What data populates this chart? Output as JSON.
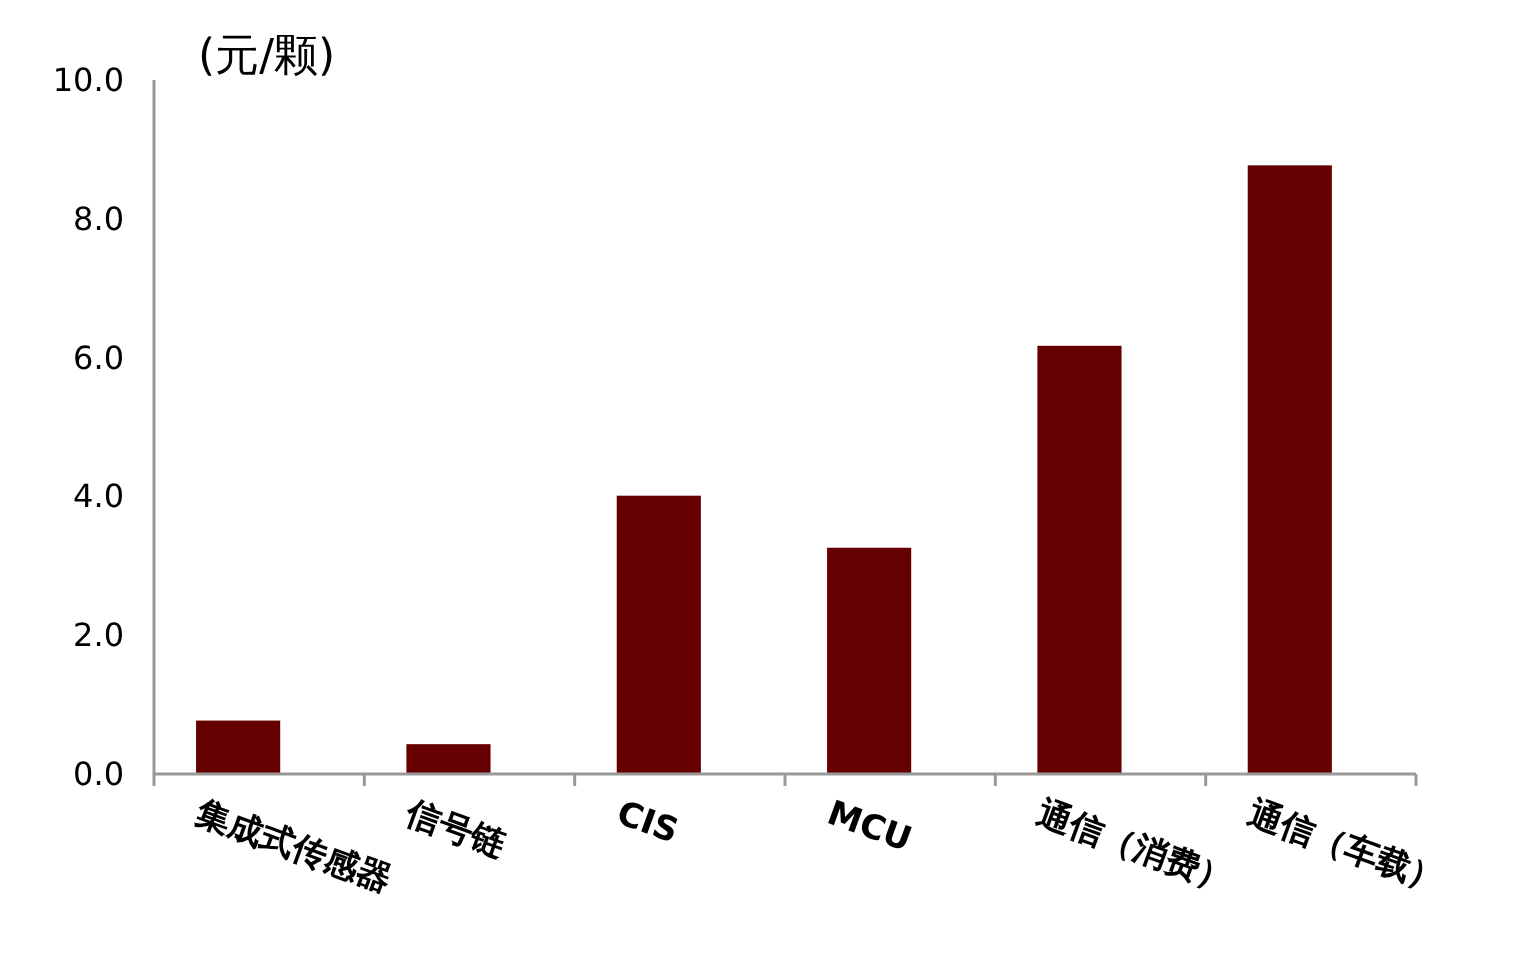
{
  "chart_data": {
    "type": "bar",
    "ylabel": "(元/颗)",
    "categories": [
      "集成式传感器",
      "信号链",
      "CIS",
      "MCU",
      "通信（消费）",
      "通信（车载）"
    ],
    "values": [
      0.77,
      0.43,
      4.01,
      3.26,
      6.17,
      8.77
    ],
    "color": "#660000",
    "ylim": [
      0,
      10
    ],
    "yticks": [
      {
        "value": 0,
        "label": "0.0"
      },
      {
        "value": 2,
        "label": "2.0"
      },
      {
        "value": 4,
        "label": "4.0"
      },
      {
        "value": 6,
        "label": "6.0"
      },
      {
        "value": 8,
        "label": "8.0"
      },
      {
        "value": 10,
        "label": "10.0"
      }
    ],
    "grid": false
  }
}
